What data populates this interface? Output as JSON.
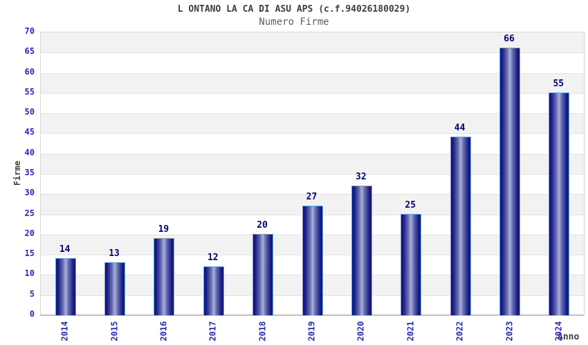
{
  "chart_data": {
    "type": "bar",
    "title": "L ONTANO LA CA DI ASU APS (c.f.94026180029)",
    "subtitle": "Numero Firme",
    "xlabel": "Anno",
    "ylabel": "Firme",
    "categories": [
      "2014",
      "2015",
      "2016",
      "2017",
      "2018",
      "2019",
      "2020",
      "2021",
      "2022",
      "2023",
      "2024"
    ],
    "values": [
      14,
      13,
      19,
      12,
      20,
      27,
      32,
      25,
      44,
      66,
      55
    ],
    "ylim": [
      0,
      70
    ],
    "ytick_step": 5,
    "grid": "horizontal-bands-alternating",
    "legend": "none",
    "colors": {
      "bar_edge": "#101273",
      "bar_center": "#aab0d8",
      "bar_border": "#64a9f2",
      "value_label": "#00008b",
      "tick_label": "#2525dd",
      "title_text": "#3d3d3d",
      "subtitle_text": "#5f5f5f",
      "band_gray": "#f2f2f2",
      "band_white": "#ffffff",
      "grid_line": "#e2e2e2",
      "axis_line": "#a9a9a9",
      "plot_border": "#d6d6d6"
    }
  }
}
